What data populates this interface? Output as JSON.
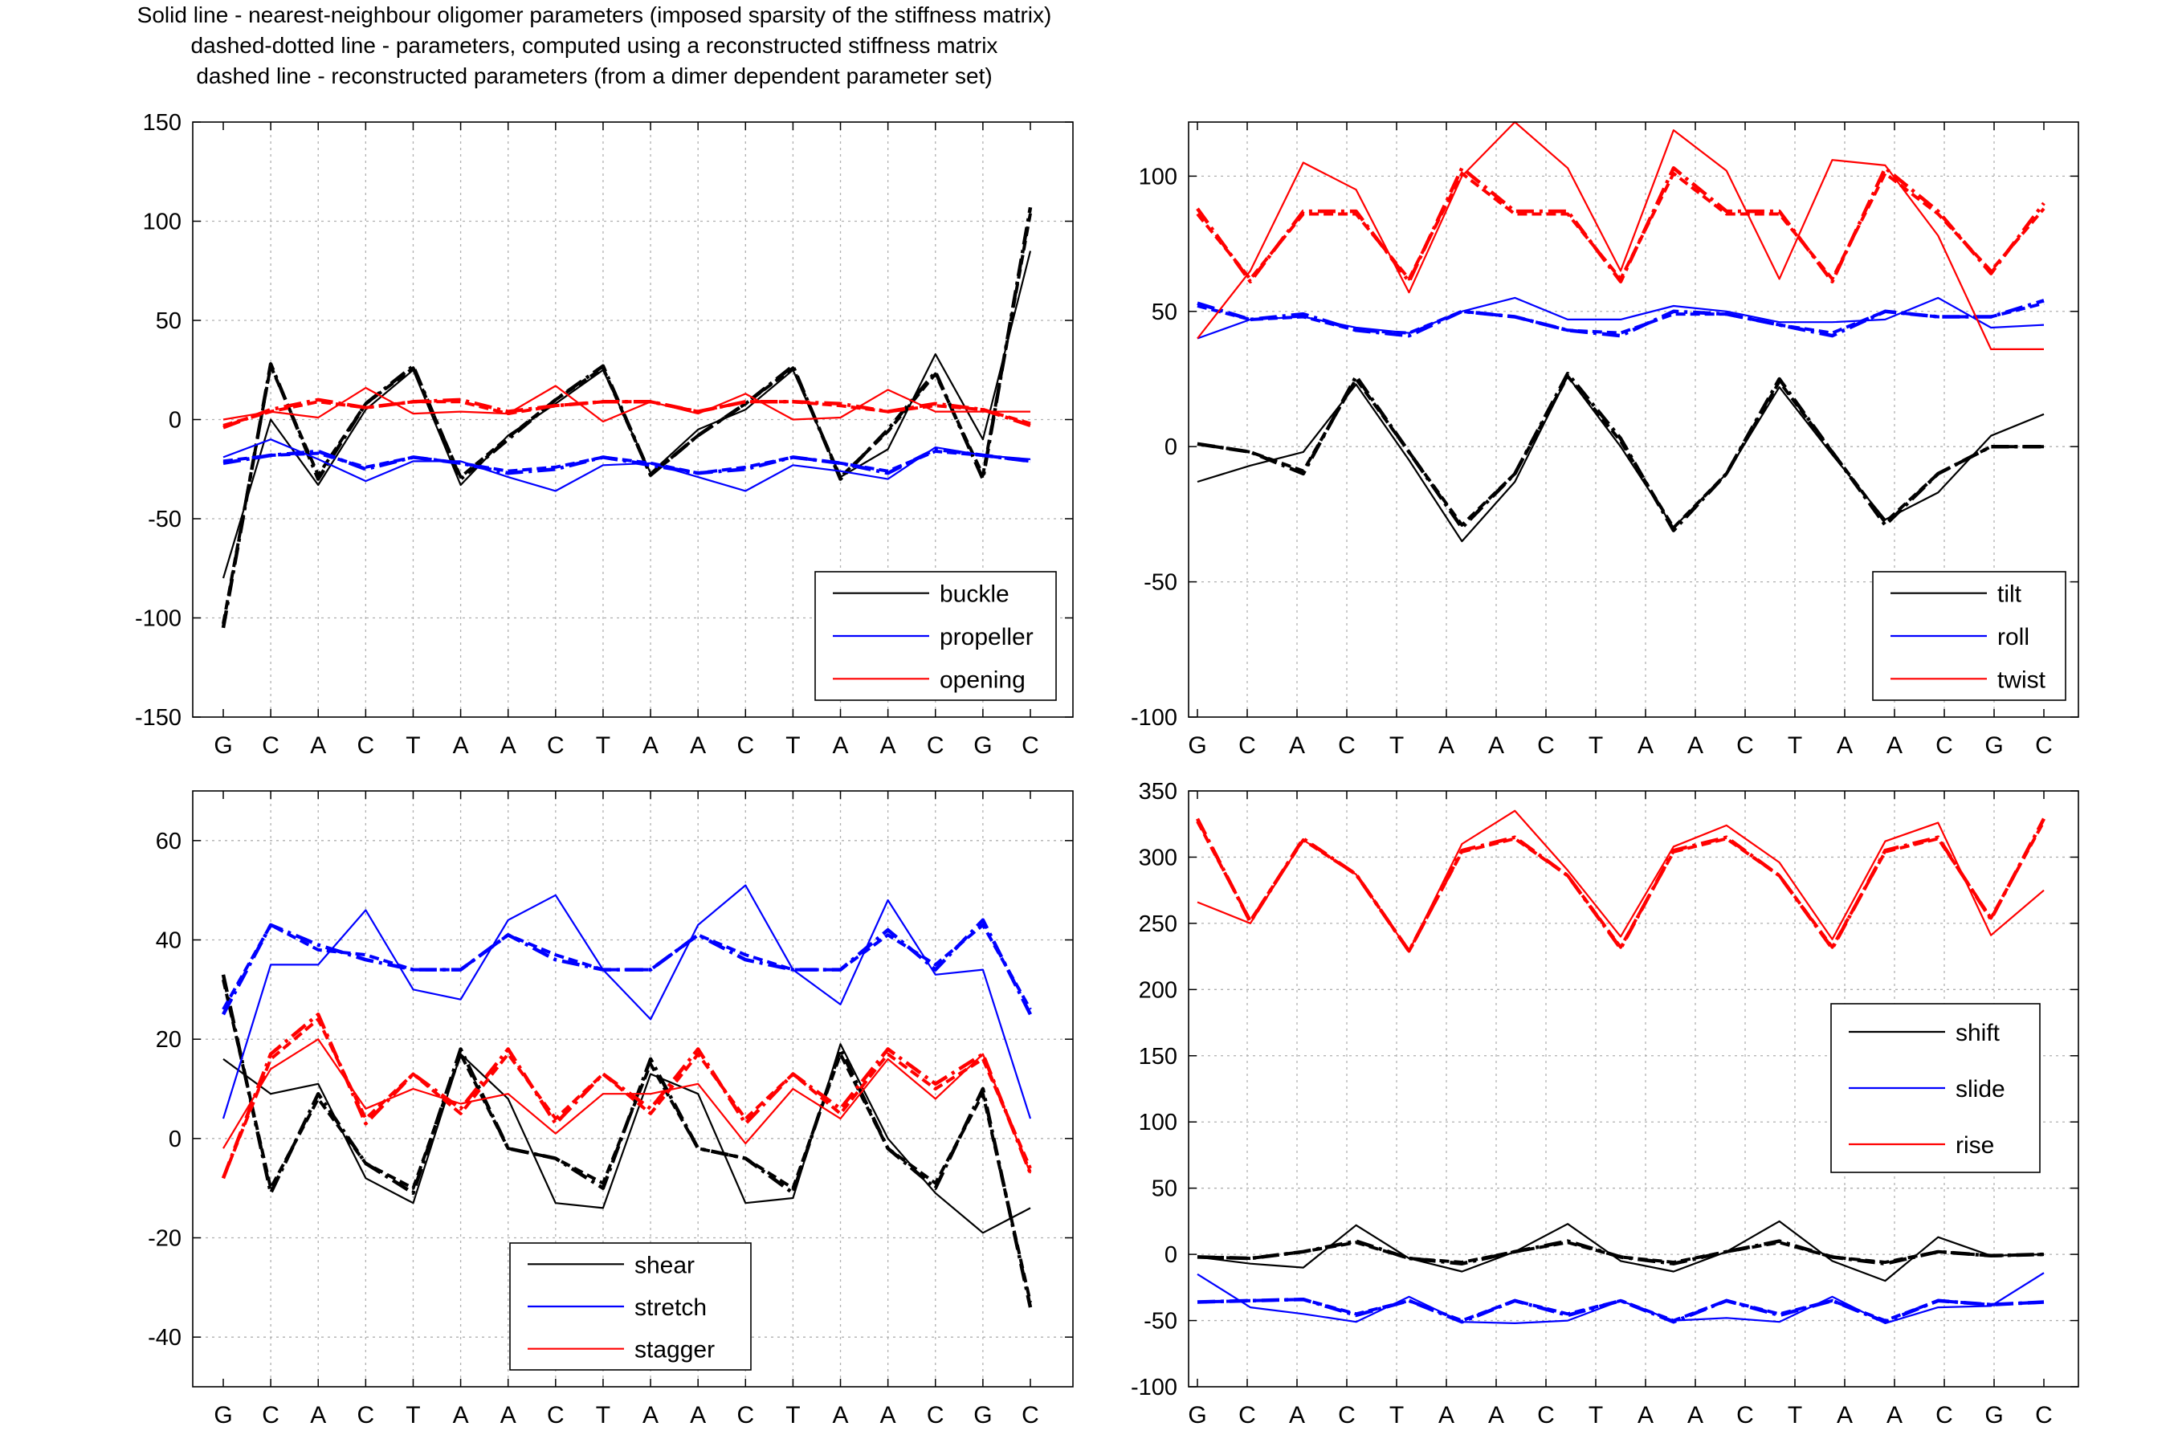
{
  "header": {
    "line1": "Solid line - nearest-neighbour oligomer parameters (imposed sparsity of the stiffness matrix)",
    "line2": "dashed-dotted line - parameters, computed using a reconstructed stiffness matrix",
    "line3": "dashed line - reconstructed parameters (from a dimer dependent parameter set)"
  },
  "colors": {
    "black": "#000000",
    "blue": "#0000ff",
    "red": "#ff0000",
    "grid": "#b0b0b0"
  },
  "chart_data": [
    {
      "type": "line",
      "categories": [
        "G",
        "C",
        "A",
        "C",
        "T",
        "A",
        "A",
        "C",
        "T",
        "A",
        "A",
        "C",
        "T",
        "A",
        "A",
        "C",
        "G",
        "C"
      ],
      "ylim": [
        -150,
        150
      ],
      "yticks": [
        -150,
        -100,
        -50,
        0,
        50,
        100,
        150
      ],
      "grid": true,
      "legend_position": "bottom-right",
      "series": [
        {
          "name": "buckle",
          "color": "black",
          "solid": [
            -80,
            0,
            -33,
            5,
            25,
            -33,
            -8,
            8,
            25,
            -27,
            -5,
            5,
            25,
            -29,
            -15,
            33,
            -10,
            85
          ],
          "dashdot": [
            -105,
            28,
            -30,
            8,
            27,
            -30,
            -10,
            10,
            27,
            -28,
            -8,
            8,
            27,
            -30,
            -5,
            24,
            -30,
            107
          ],
          "dashed": [
            -103,
            27,
            -28,
            8,
            26,
            -29,
            -9,
            10,
            26,
            -28,
            -8,
            8,
            26,
            -29,
            -6,
            23,
            -28,
            104
          ]
        },
        {
          "name": "propeller",
          "color": "blue",
          "solid": [
            -19,
            -10,
            -20,
            -31,
            -21,
            -21,
            -29,
            -36,
            -23,
            -22,
            -29,
            -36,
            -23,
            -26,
            -30,
            -14,
            -18,
            -20
          ],
          "dashdot": [
            -22,
            -18,
            -16,
            -25,
            -19,
            -22,
            -27,
            -25,
            -19,
            -23,
            -27,
            -25,
            -19,
            -22,
            -27,
            -15,
            -18,
            -21
          ],
          "dashed": [
            -21,
            -18,
            -17,
            -24,
            -19,
            -22,
            -26,
            -24,
            -19,
            -22,
            -27,
            -24,
            -19,
            -22,
            -26,
            -16,
            -18,
            -21
          ]
        },
        {
          "name": "opening",
          "color": "red",
          "solid": [
            0,
            4,
            1,
            16,
            3,
            4,
            3,
            17,
            -1,
            9,
            3,
            13,
            0,
            1,
            15,
            4,
            4,
            4
          ],
          "dashdot": [
            -4,
            5,
            10,
            6,
            9,
            10,
            4,
            7,
            9,
            9,
            4,
            9,
            9,
            8,
            4,
            8,
            5,
            -3
          ],
          "dashed": [
            -3,
            4,
            9,
            6,
            9,
            9,
            3,
            7,
            9,
            9,
            4,
            9,
            9,
            7,
            4,
            7,
            5,
            -2
          ]
        }
      ]
    },
    {
      "type": "line",
      "categories": [
        "G",
        "C",
        "A",
        "C",
        "T",
        "A",
        "A",
        "C",
        "T",
        "A",
        "A",
        "C",
        "T",
        "A",
        "A",
        "C",
        "G",
        "C"
      ],
      "ylim": [
        -100,
        120
      ],
      "yticks": [
        -100,
        -50,
        0,
        50,
        100
      ],
      "grid": true,
      "legend_position": "bottom-right",
      "series": [
        {
          "name": "tilt",
          "color": "black",
          "solid": [
            -13,
            -7,
            -2,
            23,
            -5,
            -35,
            -13,
            26,
            0,
            -30,
            -10,
            22,
            -3,
            -27,
            -17,
            4,
            12
          ],
          "dashdot": [
            1,
            -2,
            -10,
            26,
            -2,
            -30,
            -10,
            27,
            3,
            -31,
            -10,
            25,
            -2,
            -29,
            -10,
            0,
            0
          ],
          "dashed": [
            1,
            -2,
            -9,
            25,
            -2,
            -29,
            -10,
            26,
            2,
            -30,
            -10,
            24,
            -2,
            -28,
            -10,
            0,
            0
          ]
        },
        {
          "name": "roll",
          "color": "blue",
          "solid": [
            40,
            47,
            48,
            44,
            42,
            50,
            55,
            47,
            47,
            52,
            50,
            46,
            46,
            47,
            55,
            44,
            45
          ],
          "dashdot": [
            53,
            47,
            49,
            43,
            41,
            50,
            48,
            43,
            41,
            50,
            49,
            45,
            41,
            50,
            48,
            48,
            54
          ],
          "dashed": [
            52,
            47,
            48,
            43,
            42,
            50,
            48,
            43,
            42,
            49,
            49,
            45,
            42,
            50,
            48,
            48,
            53
          ]
        },
        {
          "name": "twist",
          "color": "red",
          "solid": [
            40,
            65,
            105,
            95,
            57,
            100,
            120,
            103,
            65,
            117,
            102,
            62,
            106,
            104,
            78,
            36,
            36
          ],
          "dashdot": [
            88,
            61,
            87,
            87,
            61,
            103,
            87,
            87,
            61,
            103,
            87,
            87,
            61,
            103,
            87,
            64,
            90
          ],
          "dashed": [
            86,
            62,
            86,
            86,
            62,
            101,
            86,
            86,
            62,
            101,
            86,
            86,
            62,
            101,
            86,
            65,
            88
          ]
        }
      ]
    },
    {
      "type": "line",
      "categories": [
        "G",
        "C",
        "A",
        "C",
        "T",
        "A",
        "A",
        "C",
        "T",
        "A",
        "A",
        "C",
        "T",
        "A",
        "A",
        "C",
        "G",
        "C"
      ],
      "ylim": [
        -50,
        70
      ],
      "yticks": [
        -40,
        -20,
        0,
        20,
        40,
        60
      ],
      "grid": true,
      "legend_position": "bottom-center",
      "series": [
        {
          "name": "shear",
          "color": "black",
          "solid": [
            16,
            9,
            11,
            -8,
            -13,
            17,
            8,
            -13,
            -14,
            13,
            9,
            -13,
            -12,
            19,
            0,
            -11,
            -19,
            -14
          ],
          "dashdot": [
            33,
            -11,
            9,
            -5,
            -11,
            18,
            -2,
            -4,
            -10,
            16,
            -2,
            -4,
            -11,
            18,
            -2,
            -10,
            10,
            -34
          ],
          "dashed": [
            32,
            -10,
            8,
            -5,
            -10,
            17,
            -2,
            -4,
            -9,
            15,
            -2,
            -4,
            -10,
            17,
            -2,
            -9,
            9,
            -33
          ]
        },
        {
          "name": "stretch",
          "color": "blue",
          "solid": [
            4,
            35,
            35,
            46,
            30,
            28,
            44,
            49,
            34,
            24,
            43,
            51,
            34,
            27,
            48,
            33,
            34,
            4
          ],
          "dashdot": [
            25,
            43,
            39,
            36,
            34,
            34,
            41,
            36,
            34,
            34,
            41,
            36,
            34,
            34,
            42,
            34,
            44,
            25
          ],
          "dashed": [
            26,
            43,
            38,
            37,
            34,
            34,
            41,
            37,
            34,
            34,
            41,
            37,
            34,
            34,
            41,
            35,
            43,
            26
          ]
        },
        {
          "name": "stagger",
          "color": "red",
          "solid": [
            -2,
            14,
            20,
            6,
            10,
            7,
            9,
            1,
            9,
            9,
            11,
            -1,
            10,
            4,
            16,
            8,
            17,
            -7
          ],
          "dashdot": [
            -8,
            17,
            25,
            3,
            13,
            6,
            18,
            3,
            13,
            6,
            18,
            3,
            13,
            6,
            18,
            11,
            17,
            -7
          ],
          "dashed": [
            -8,
            16,
            24,
            4,
            13,
            5,
            17,
            4,
            13,
            5,
            17,
            4,
            13,
            5,
            17,
            10,
            16,
            -6
          ]
        }
      ]
    },
    {
      "type": "line",
      "categories": [
        "G",
        "C",
        "A",
        "C",
        "T",
        "A",
        "A",
        "C",
        "T",
        "A",
        "A",
        "C",
        "T",
        "A",
        "A",
        "C",
        "G",
        "C"
      ],
      "ylim": [
        -100,
        350
      ],
      "yticks": [
        -100,
        -50,
        0,
        50,
        100,
        150,
        200,
        250,
        300,
        350
      ],
      "grid": true,
      "legend_position": "center-right",
      "series": [
        {
          "name": "shift",
          "color": "black",
          "solid": [
            -2,
            -7,
            -10,
            22,
            -3,
            -13,
            2,
            23,
            -5,
            -13,
            2,
            25,
            -5,
            -20,
            13,
            -1,
            0
          ],
          "dashdot": [
            -2,
            -3,
            2,
            10,
            -3,
            -7,
            2,
            10,
            -2,
            -7,
            2,
            10,
            -2,
            -7,
            2,
            -1,
            0
          ],
          "dashed": [
            -2,
            -3,
            2,
            9,
            -3,
            -6,
            2,
            9,
            -2,
            -6,
            2,
            9,
            -2,
            -6,
            2,
            -1,
            0
          ]
        },
        {
          "name": "slide",
          "color": "blue",
          "solid": [
            -15,
            -40,
            -45,
            -51,
            -32,
            -51,
            -52,
            -50,
            -35,
            -50,
            -48,
            -51,
            -32,
            -52,
            -40,
            -39,
            -14
          ],
          "dashdot": [
            -36,
            -35,
            -34,
            -46,
            -35,
            -51,
            -35,
            -46,
            -35,
            -51,
            -35,
            -46,
            -35,
            -51,
            -35,
            -38,
            -36
          ],
          "dashed": [
            -36,
            -35,
            -34,
            -45,
            -35,
            -50,
            -35,
            -45,
            -35,
            -50,
            -35,
            -45,
            -35,
            -50,
            -35,
            -38,
            -36
          ]
        },
        {
          "name": "rise",
          "color": "red",
          "solid": [
            266,
            250,
            313,
            287,
            229,
            310,
            335,
            290,
            240,
            308,
            324,
            296,
            238,
            312,
            326,
            241,
            275
          ],
          "dashdot": [
            329,
            251,
            314,
            287,
            229,
            305,
            315,
            286,
            231,
            305,
            315,
            286,
            231,
            305,
            315,
            253,
            329
          ],
          "dashed": [
            327,
            252,
            313,
            287,
            229,
            304,
            314,
            286,
            232,
            304,
            314,
            286,
            232,
            304,
            314,
            254,
            327
          ]
        }
      ]
    }
  ]
}
